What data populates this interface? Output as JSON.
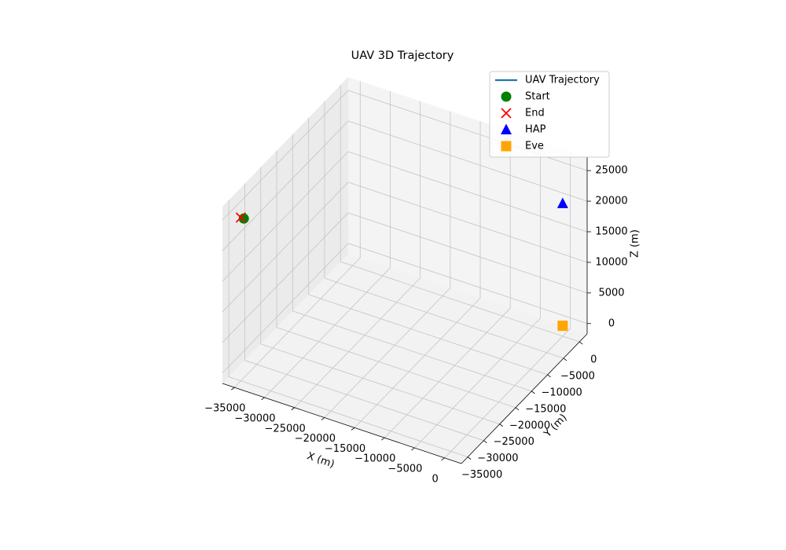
{
  "chart_data": {
    "type": "scatter3d",
    "title": "UAV 3D Trajectory",
    "xlabel": "X (m)",
    "ylabel": "Y (m)",
    "zlabel": "Z (m)",
    "xlim": [
      -37000,
      2800
    ],
    "ylim": [
      -37000,
      2400
    ],
    "zlim": [
      -1700,
      27200
    ],
    "xticks": [
      {
        "value": -35000,
        "label": "−35000"
      },
      {
        "value": -30000,
        "label": "−30000"
      },
      {
        "value": -25000,
        "label": "−25000"
      },
      {
        "value": -20000,
        "label": "−20000"
      },
      {
        "value": -15000,
        "label": "−15000"
      },
      {
        "value": -10000,
        "label": "−10000"
      },
      {
        "value": -5000,
        "label": "−5000"
      },
      0
    ],
    "yticks": [
      {
        "value": -35000,
        "label": "−35000"
      },
      {
        "value": -30000,
        "label": "−30000"
      },
      {
        "value": -25000,
        "label": "−25000"
      },
      {
        "value": -20000,
        "label": "−20000"
      },
      {
        "value": -15000,
        "label": "−15000"
      },
      {
        "value": -10000,
        "label": "−10000"
      },
      {
        "value": -5000,
        "label": "−5000"
      },
      0
    ],
    "zticks": [
      0,
      5000,
      10000,
      15000,
      20000,
      25000
    ],
    "grid": true,
    "legend": "upper right",
    "series": [
      {
        "name": "UAV Trajectory",
        "color": "#1f77b4",
        "marker": "line",
        "x": [
          -34500,
          -35000
        ],
        "y": [
          -35000,
          -35000
        ],
        "z": [
          25000,
          25000
        ]
      },
      {
        "name": "Start",
        "color": "#008000",
        "marker": "circle",
        "x": [
          -34500
        ],
        "y": [
          -35000
        ],
        "z": [
          25000
        ]
      },
      {
        "name": "End",
        "color": "#ff0000",
        "marker": "x",
        "x": [
          -35000
        ],
        "y": [
          -35000
        ],
        "z": [
          25000
        ]
      },
      {
        "name": "HAP",
        "color": "#0000ff",
        "marker": "triangle",
        "x": [
          0
        ],
        "y": [
          0
        ],
        "z": [
          20000
        ]
      },
      {
        "name": "Eve",
        "color": "#ffa500",
        "marker": "square",
        "x": [
          0
        ],
        "y": [
          0
        ],
        "z": [
          0
        ]
      }
    ]
  }
}
